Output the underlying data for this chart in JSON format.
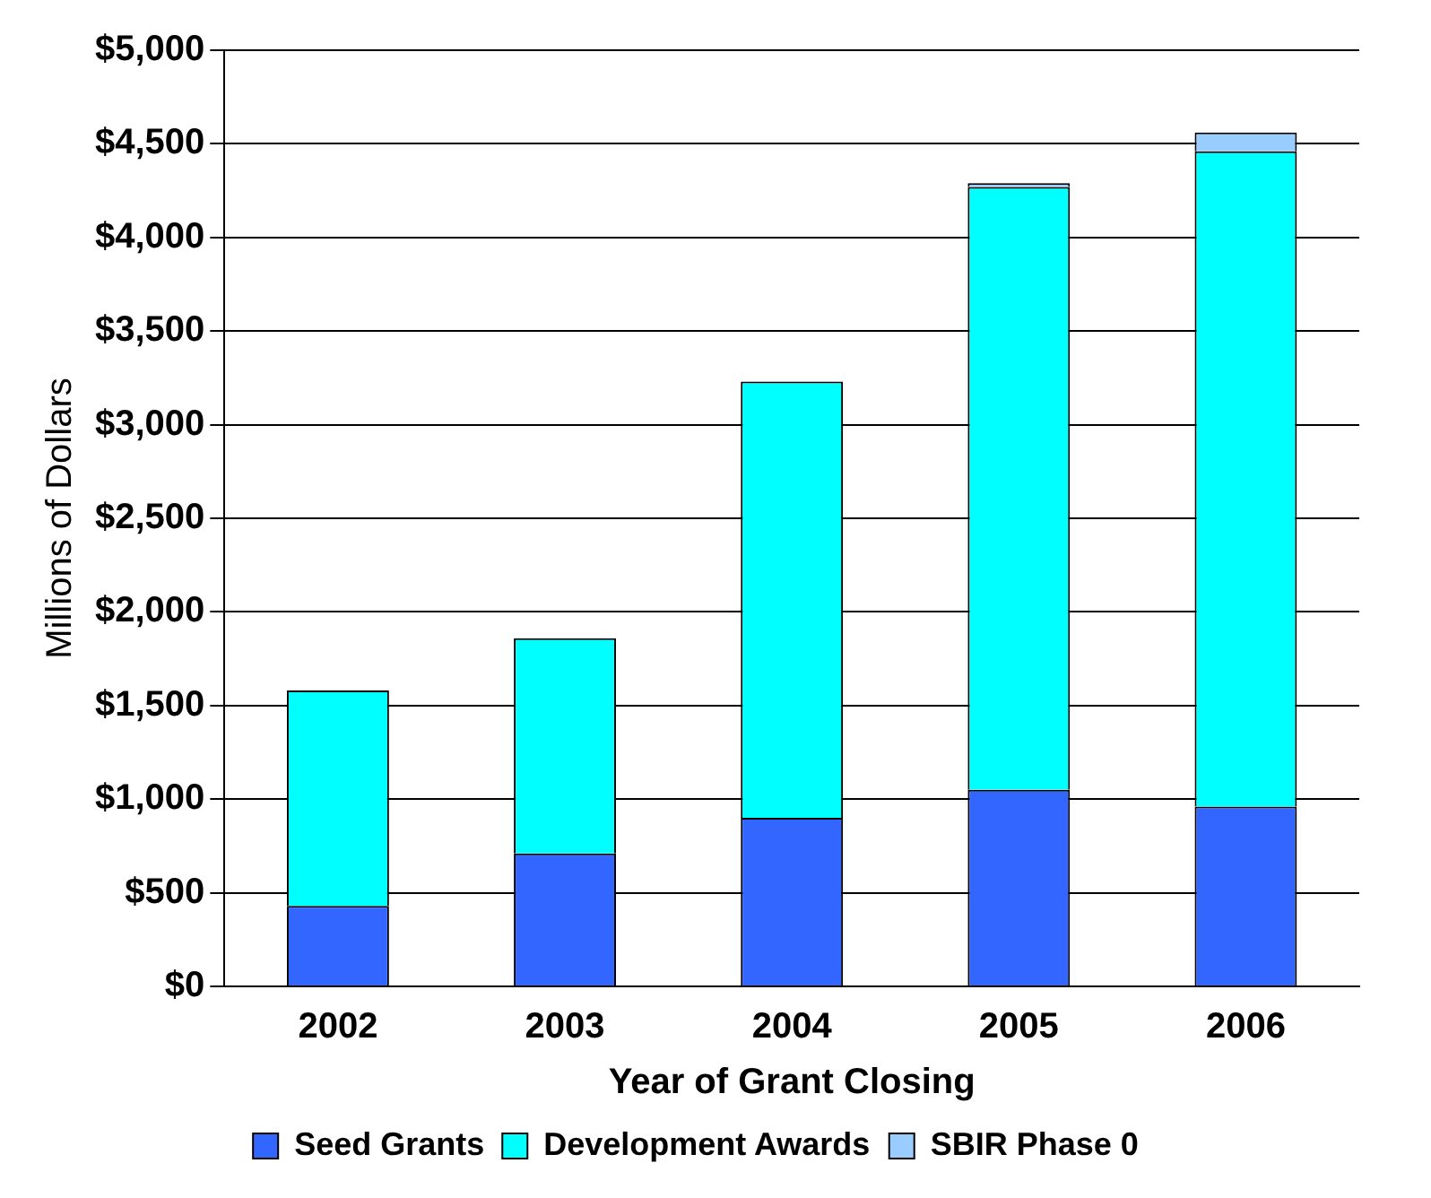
{
  "chart_data": {
    "type": "bar",
    "stacked": true,
    "xlabel": "Year of Grant Closing",
    "ylabel": "Millions of Dollars",
    "categories": [
      "2002",
      "2003",
      "2004",
      "2005",
      "2006"
    ],
    "series": [
      {
        "name": "Seed Grants",
        "color": "#3366ff",
        "values": [
          430,
          710,
          900,
          1050,
          960
        ]
      },
      {
        "name": "Development Awards",
        "color": "#00ffff",
        "values": [
          1150,
          1150,
          2330,
          3220,
          3500
        ]
      },
      {
        "name": "SBIR Phase 0",
        "color": "#99ccff",
        "values": [
          0,
          0,
          0,
          20,
          100
        ]
      }
    ],
    "ylim": [
      0,
      5000
    ],
    "yticks": [
      {
        "value": 0,
        "label": "$0"
      },
      {
        "value": 500,
        "label": "$500"
      },
      {
        "value": 1000,
        "label": "$1,000"
      },
      {
        "value": 1500,
        "label": "$1,500"
      },
      {
        "value": 2000,
        "label": "$2,000"
      },
      {
        "value": 2500,
        "label": "$2,500"
      },
      {
        "value": 3000,
        "label": "$3,000"
      },
      {
        "value": 3500,
        "label": "$3,500"
      },
      {
        "value": 4000,
        "label": "$4,000"
      },
      {
        "value": 4500,
        "label": "$4,500"
      },
      {
        "value": 5000,
        "label": "$5,000"
      }
    ],
    "grid": "y",
    "legend": "bottom"
  }
}
